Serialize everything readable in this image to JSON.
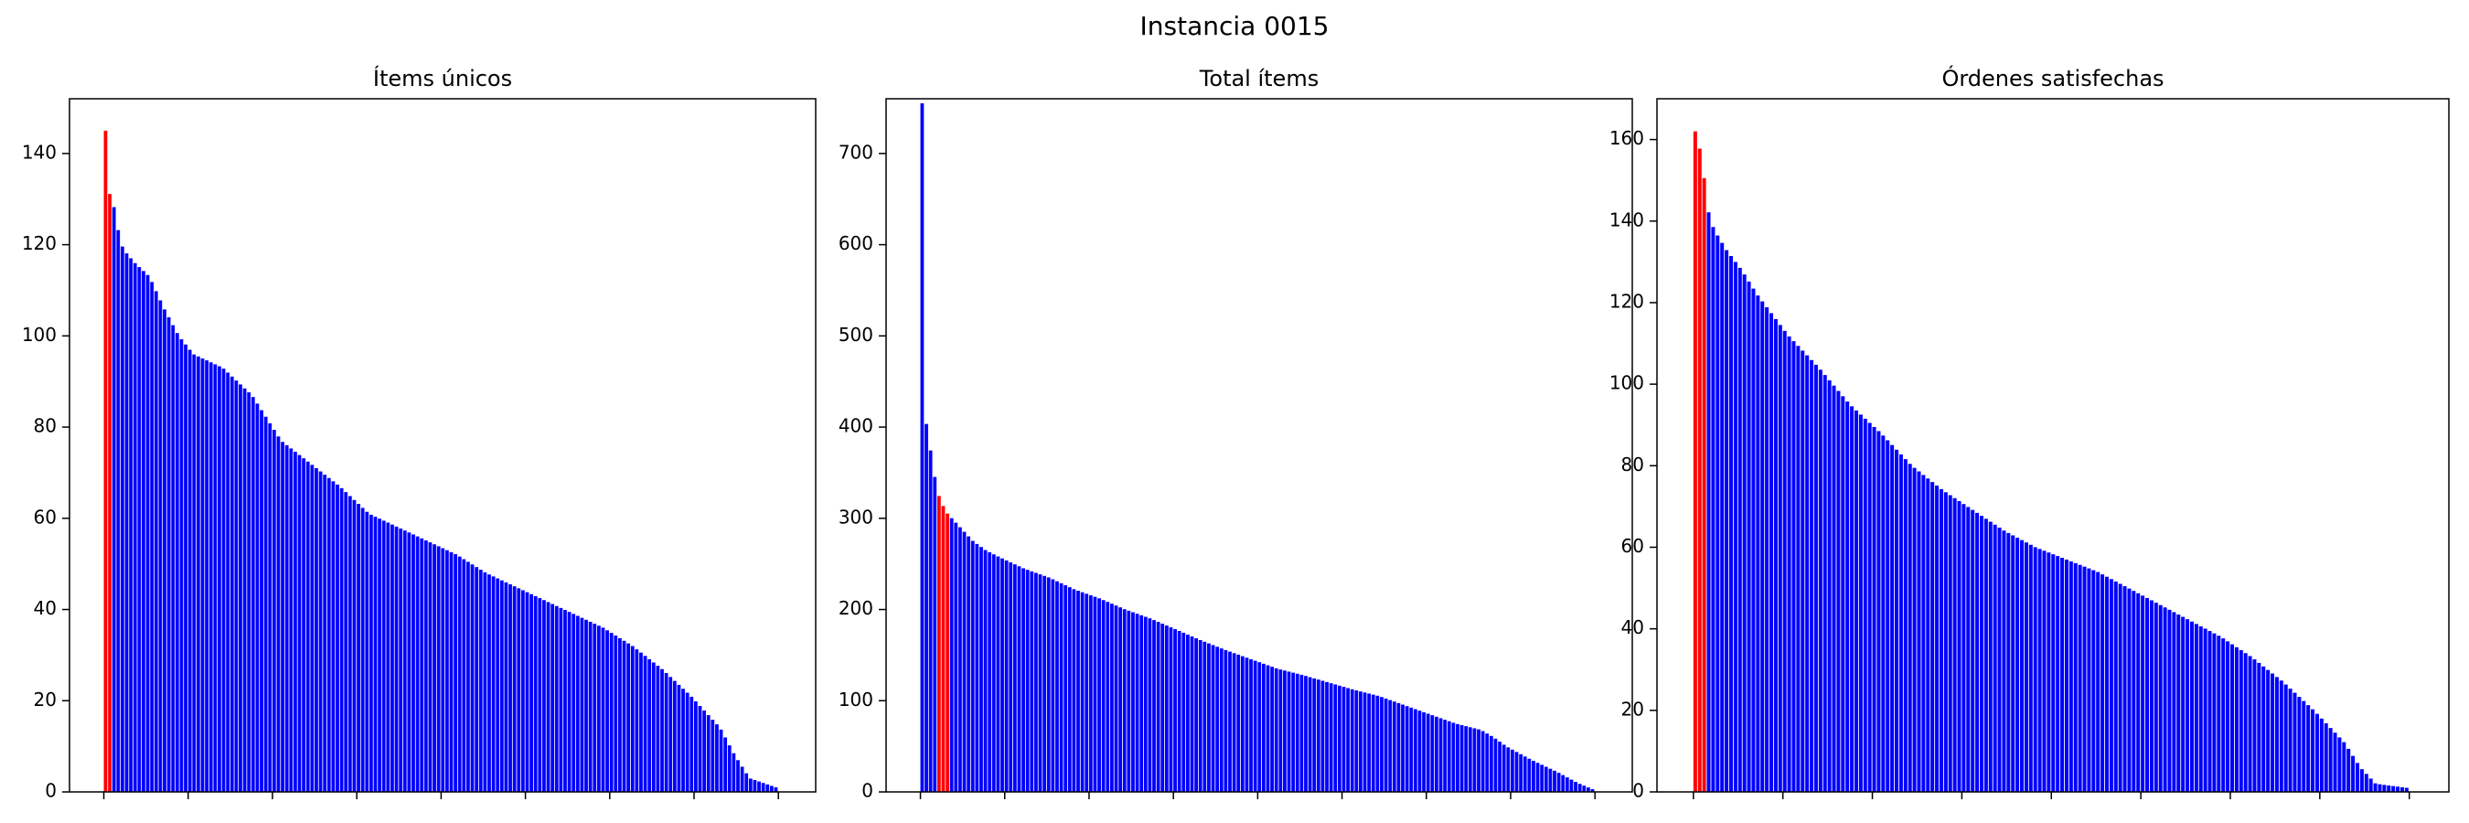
{
  "suptitle": "Instancia 0015",
  "colors": {
    "bar": "#0000ff",
    "highlight": "#ff0000",
    "axis": "#000000"
  },
  "chart_data": [
    {
      "type": "bar",
      "title": "Ítems únicos",
      "ylim": [
        0,
        152
      ],
      "yticks": [
        0,
        20,
        40,
        60,
        80,
        100,
        120,
        140
      ],
      "n_bars": 160,
      "highlight_indices": [
        0,
        1
      ],
      "curve": [
        [
          0,
          145
        ],
        [
          1,
          132
        ],
        [
          2,
          130
        ],
        [
          3,
          128
        ],
        [
          4,
          124
        ],
        [
          6,
          119
        ],
        [
          10,
          116
        ],
        [
          15,
          113
        ],
        [
          20,
          106
        ],
        [
          25,
          100
        ],
        [
          30,
          96
        ],
        [
          40,
          93
        ],
        [
          50,
          87
        ],
        [
          55,
          82
        ],
        [
          60,
          77
        ],
        [
          70,
          72
        ],
        [
          80,
          67
        ],
        [
          90,
          61
        ],
        [
          100,
          58
        ],
        [
          110,
          55
        ],
        [
          120,
          52
        ],
        [
          130,
          48
        ],
        [
          140,
          45
        ],
        [
          150,
          42
        ],
        [
          160,
          39
        ],
        [
          170,
          36
        ],
        [
          180,
          32
        ],
        [
          190,
          27
        ],
        [
          200,
          21
        ],
        [
          210,
          14
        ],
        [
          215,
          8
        ],
        [
          220,
          3
        ],
        [
          229,
          1
        ]
      ],
      "x_span": 229
    },
    {
      "type": "bar",
      "title": "Total ítems",
      "ylim": [
        0,
        760
      ],
      "yticks": [
        0,
        100,
        200,
        300,
        400,
        500,
        600,
        700
      ],
      "n_bars": 160,
      "highlight_indices": [
        4,
        5,
        6
      ],
      "curve": [
        [
          0,
          755
        ],
        [
          1,
          415
        ],
        [
          3,
          380
        ],
        [
          5,
          345
        ],
        [
          7,
          320
        ],
        [
          10,
          305
        ],
        [
          15,
          290
        ],
        [
          20,
          275
        ],
        [
          25,
          265
        ],
        [
          30,
          258
        ],
        [
          40,
          245
        ],
        [
          50,
          235
        ],
        [
          60,
          222
        ],
        [
          70,
          212
        ],
        [
          80,
          200
        ],
        [
          90,
          190
        ],
        [
          100,
          178
        ],
        [
          110,
          166
        ],
        [
          120,
          155
        ],
        [
          130,
          145
        ],
        [
          140,
          135
        ],
        [
          150,
          128
        ],
        [
          160,
          120
        ],
        [
          170,
          112
        ],
        [
          180,
          105
        ],
        [
          190,
          95
        ],
        [
          200,
          85
        ],
        [
          210,
          75
        ],
        [
          220,
          68
        ],
        [
          225,
          60
        ],
        [
          230,
          50
        ],
        [
          240,
          35
        ],
        [
          250,
          22
        ],
        [
          258,
          10
        ],
        [
          264,
          3
        ]
      ],
      "x_span": 264
    },
    {
      "type": "bar",
      "title": "Órdenes satisfechas",
      "ylim": [
        0,
        170
      ],
      "yticks": [
        0,
        20,
        40,
        60,
        80,
        100,
        120,
        140,
        160
      ],
      "n_bars": 160,
      "highlight_indices": [
        0,
        1,
        2
      ],
      "curve": [
        [
          0,
          162
        ],
        [
          1,
          160
        ],
        [
          2,
          155
        ],
        [
          3,
          150
        ],
        [
          4,
          143
        ],
        [
          6,
          138
        ],
        [
          10,
          133
        ],
        [
          15,
          128
        ],
        [
          20,
          122
        ],
        [
          25,
          117
        ],
        [
          30,
          112
        ],
        [
          40,
          104
        ],
        [
          50,
          95
        ],
        [
          60,
          88
        ],
        [
          70,
          80
        ],
        [
          80,
          74
        ],
        [
          90,
          69
        ],
        [
          100,
          64
        ],
        [
          110,
          60
        ],
        [
          120,
          57
        ],
        [
          130,
          54
        ],
        [
          140,
          50
        ],
        [
          150,
          46
        ],
        [
          160,
          42
        ],
        [
          170,
          38
        ],
        [
          180,
          33
        ],
        [
          190,
          27
        ],
        [
          200,
          20
        ],
        [
          210,
          12
        ],
        [
          215,
          6
        ],
        [
          220,
          2
        ],
        [
          230,
          1
        ]
      ],
      "x_span": 230
    }
  ]
}
